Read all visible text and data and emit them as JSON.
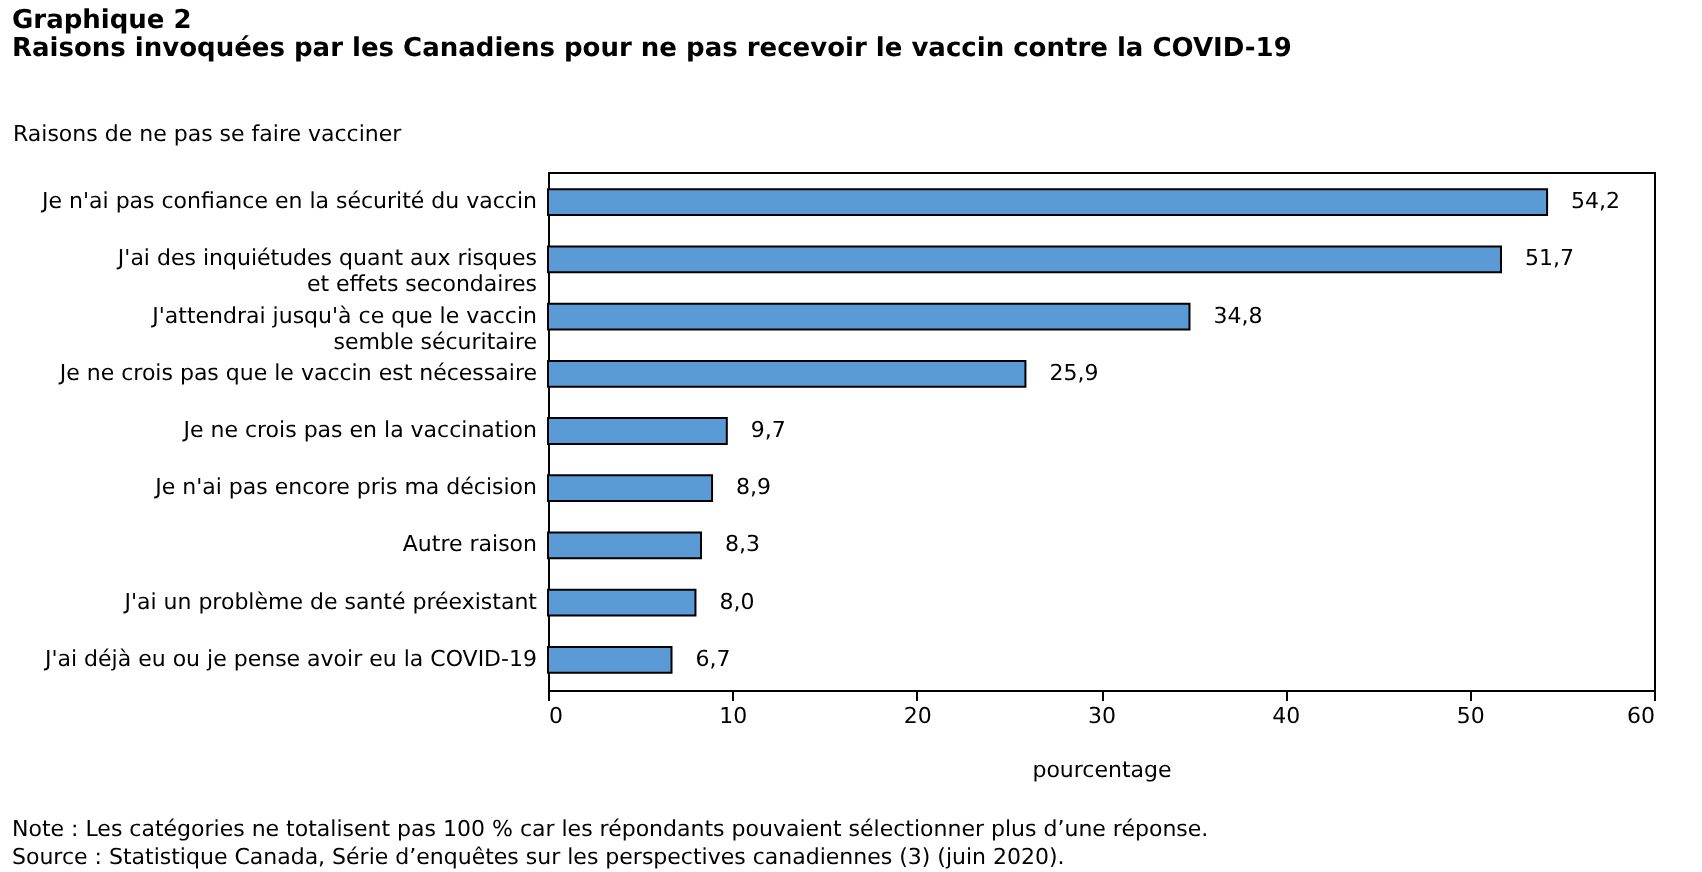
{
  "chart_data": {
    "type": "bar",
    "orientation": "horizontal",
    "title": "Graphique 2",
    "subtitle": "Raisons invoquées par les Canadiens pour ne pas recevoir le vaccin contre la COVID-19",
    "ylabel": "Raisons de ne pas se faire vacciner",
    "xlabel": "pourcentage",
    "categories": [
      "Je n'ai pas confiance en la sécurité du vaccin",
      "J'ai des inquiétudes quant aux risques et effets secondaires",
      "J'attendrai jusqu'à ce que le vaccin semble sécuritaire",
      "Je ne crois pas que le vaccin est nécessaire",
      "Je ne crois pas en la vaccination",
      "Je n'ai pas encore pris ma décision",
      "Autre raison",
      "J'ai un problème de santé préexistant",
      "J'ai déjà eu ou je pense avoir eu la COVID-19"
    ],
    "values": [
      54.2,
      51.7,
      34.8,
      25.9,
      9.7,
      8.9,
      8.3,
      8.0,
      6.7
    ],
    "value_labels": [
      "54,2",
      "51,7",
      "34,8",
      "25,9",
      "9,7",
      "8,9",
      "8,3",
      "8,0",
      "6,7"
    ],
    "color": "#5b9bd5",
    "xlim": [
      0,
      60
    ],
    "xticks": [
      0,
      10,
      20,
      30,
      40,
      50,
      60
    ],
    "grid": false,
    "annotations": [
      "Note : Les catégories ne totalisent pas 100 % car les répondants pouvaient sélectionner plus d’une réponse.",
      "Source : Statistique Canada, Série d’enquêtes sur les perspectives canadiennes (3) (juin 2020)."
    ]
  }
}
